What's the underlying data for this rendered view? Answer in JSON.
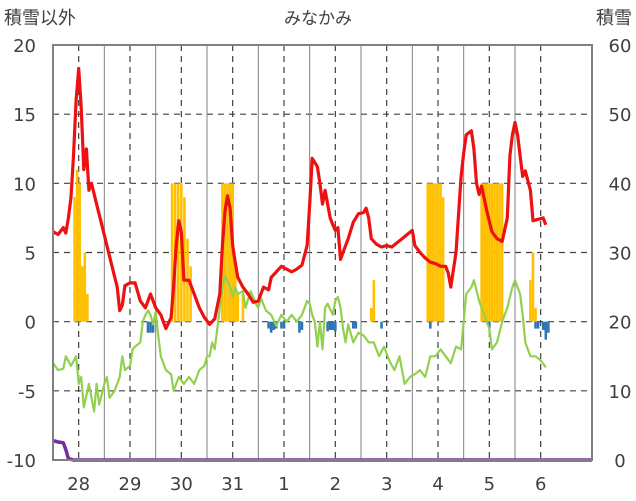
{
  "chart_data": {
    "type": "line",
    "title": "みなかみ",
    "left_axis": {
      "label": "積雪以外",
      "min": -10,
      "max": 20,
      "ticks": [
        "20",
        "15",
        "10",
        "5",
        "0",
        "-5",
        "-10"
      ],
      "tick_values": [
        20,
        15,
        10,
        5,
        0,
        -5,
        -10
      ]
    },
    "right_axis": {
      "label": "積雪",
      "min": 0,
      "max": 60,
      "ticks": [
        "60",
        "50",
        "40",
        "30",
        "20",
        "10",
        "0"
      ],
      "tick_values": [
        60,
        50,
        40,
        30,
        20,
        10,
        0
      ]
    },
    "x_categories": [
      "28",
      "29",
      "30",
      "31",
      "1",
      "2",
      "3",
      "4",
      "5",
      "6"
    ],
    "x_range": [
      0,
      10.5
    ],
    "grid": true,
    "colors": {
      "temp_line": "#ee1111",
      "green_line": "#92d050",
      "snow_line": "#7030a0",
      "yellow_bars": "#ffc000",
      "blue_bars": "#2e75b6",
      "grid": "#404040",
      "frame": "#808080"
    },
    "temperature_red": [
      [
        0.0,
        6.5
      ],
      [
        0.1,
        6.3
      ],
      [
        0.2,
        6.8
      ],
      [
        0.25,
        6.4
      ],
      [
        0.3,
        7.5
      ],
      [
        0.35,
        9.0
      ],
      [
        0.4,
        12.0
      ],
      [
        0.45,
        16.0
      ],
      [
        0.5,
        18.3
      ],
      [
        0.55,
        15.5
      ],
      [
        0.6,
        11.0
      ],
      [
        0.65,
        12.5
      ],
      [
        0.7,
        9.5
      ],
      [
        0.75,
        10.0
      ],
      [
        0.85,
        8.5
      ],
      [
        0.95,
        7.0
      ],
      [
        1.05,
        5.5
      ],
      [
        1.15,
        4.0
      ],
      [
        1.25,
        2.5
      ],
      [
        1.3,
        0.8
      ],
      [
        1.35,
        1.2
      ],
      [
        1.4,
        2.6
      ],
      [
        1.5,
        2.8
      ],
      [
        1.6,
        2.8
      ],
      [
        1.7,
        1.5
      ],
      [
        1.8,
        1.0
      ],
      [
        1.9,
        2.0
      ],
      [
        2.0,
        1.0
      ],
      [
        2.1,
        0.5
      ],
      [
        2.2,
        -0.5
      ],
      [
        2.3,
        0.3
      ],
      [
        2.35,
        2.5
      ],
      [
        2.4,
        5.5
      ],
      [
        2.45,
        7.3
      ],
      [
        2.5,
        6.5
      ],
      [
        2.55,
        3.0
      ],
      [
        2.65,
        3.0
      ],
      [
        2.75,
        2.0
      ],
      [
        2.85,
        1.0
      ],
      [
        2.95,
        0.3
      ],
      [
        3.05,
        -0.2
      ],
      [
        3.15,
        0.2
      ],
      [
        3.25,
        2.0
      ],
      [
        3.3,
        5.5
      ],
      [
        3.35,
        8.0
      ],
      [
        3.4,
        9.1
      ],
      [
        3.45,
        8.2
      ],
      [
        3.5,
        5.5
      ],
      [
        3.55,
        4.3
      ],
      [
        3.6,
        3.2
      ],
      [
        3.7,
        2.5
      ],
      [
        3.8,
        2.0
      ],
      [
        3.9,
        1.4
      ],
      [
        4.0,
        1.5
      ],
      [
        4.1,
        2.5
      ],
      [
        4.2,
        2.3
      ],
      [
        4.25,
        3.2
      ],
      [
        4.35,
        3.6
      ],
      [
        4.45,
        4.0
      ],
      [
        4.55,
        3.8
      ],
      [
        4.65,
        3.6
      ],
      [
        4.75,
        3.8
      ],
      [
        4.85,
        4.1
      ],
      [
        4.95,
        5.5
      ],
      [
        5.0,
        8.5
      ],
      [
        5.05,
        11.8
      ],
      [
        5.15,
        11.2
      ],
      [
        5.2,
        10.0
      ],
      [
        5.25,
        8.5
      ],
      [
        5.3,
        9.5
      ],
      [
        5.4,
        7.5
      ],
      [
        5.45,
        7.0
      ],
      [
        5.5,
        6.6
      ],
      [
        5.55,
        6.8
      ],
      [
        5.6,
        4.5
      ],
      [
        5.65,
        5.0
      ],
      [
        5.75,
        6.0
      ],
      [
        5.85,
        7.2
      ],
      [
        5.95,
        7.8
      ],
      [
        6.05,
        7.9
      ],
      [
        6.1,
        8.2
      ],
      [
        6.15,
        7.5
      ],
      [
        6.2,
        6.0
      ],
      [
        6.3,
        5.6
      ],
      [
        6.4,
        5.4
      ],
      [
        6.5,
        5.5
      ],
      [
        6.6,
        5.4
      ],
      [
        6.7,
        5.7
      ],
      [
        6.8,
        6.0
      ],
      [
        6.9,
        6.3
      ],
      [
        7.0,
        6.6
      ],
      [
        7.05,
        5.5
      ],
      [
        7.15,
        5.0
      ],
      [
        7.25,
        4.6
      ],
      [
        7.35,
        4.3
      ],
      [
        7.45,
        4.2
      ],
      [
        7.55,
        4.0
      ],
      [
        7.65,
        4.0
      ],
      [
        7.7,
        3.5
      ],
      [
        7.75,
        2.5
      ],
      [
        7.85,
        5.0
      ],
      [
        7.95,
        10.5
      ],
      [
        8.0,
        12.2
      ],
      [
        8.05,
        13.5
      ],
      [
        8.15,
        13.8
      ],
      [
        8.2,
        12.5
      ],
      [
        8.25,
        10.0
      ],
      [
        8.3,
        9.2
      ],
      [
        8.35,
        9.8
      ],
      [
        8.45,
        8.0
      ],
      [
        8.55,
        6.5
      ],
      [
        8.65,
        6.0
      ],
      [
        8.75,
        5.8
      ],
      [
        8.85,
        7.5
      ],
      [
        8.9,
        12.0
      ],
      [
        8.95,
        13.5
      ],
      [
        9.0,
        14.4
      ],
      [
        9.05,
        13.5
      ],
      [
        9.1,
        12.0
      ],
      [
        9.15,
        10.5
      ],
      [
        9.2,
        10.9
      ],
      [
        9.3,
        9.5
      ],
      [
        9.35,
        7.3
      ],
      [
        9.45,
        7.4
      ],
      [
        9.55,
        7.5
      ],
      [
        9.6,
        7.0
      ]
    ],
    "green_line": [
      [
        0.0,
        -3.0
      ],
      [
        0.1,
        -3.5
      ],
      [
        0.2,
        -3.4
      ],
      [
        0.25,
        -2.5
      ],
      [
        0.35,
        -3.2
      ],
      [
        0.45,
        -2.5
      ],
      [
        0.5,
        -4.5
      ],
      [
        0.55,
        -4.0
      ],
      [
        0.6,
        -6.2
      ],
      [
        0.7,
        -4.5
      ],
      [
        0.8,
        -6.5
      ],
      [
        0.85,
        -4.5
      ],
      [
        0.9,
        -6.0
      ],
      [
        1.0,
        -4.5
      ],
      [
        1.05,
        -4.0
      ],
      [
        1.1,
        -5.5
      ],
      [
        1.2,
        -5.0
      ],
      [
        1.3,
        -4.0
      ],
      [
        1.35,
        -2.5
      ],
      [
        1.4,
        -3.5
      ],
      [
        1.5,
        -3.2
      ],
      [
        1.55,
        -2.0
      ],
      [
        1.6,
        -1.8
      ],
      [
        1.7,
        -1.5
      ],
      [
        1.75,
        0.0
      ],
      [
        1.8,
        0.5
      ],
      [
        1.85,
        0.8
      ],
      [
        1.9,
        0.5
      ],
      [
        1.95,
        -0.2
      ],
      [
        2.0,
        0.7
      ],
      [
        2.05,
        -1.0
      ],
      [
        2.1,
        -2.5
      ],
      [
        2.2,
        -3.5
      ],
      [
        2.3,
        -3.8
      ],
      [
        2.35,
        -5.0
      ],
      [
        2.45,
        -4.0
      ],
      [
        2.55,
        -4.5
      ],
      [
        2.65,
        -4.0
      ],
      [
        2.75,
        -4.5
      ],
      [
        2.85,
        -3.5
      ],
      [
        2.95,
        -3.2
      ],
      [
        3.0,
        -2.5
      ],
      [
        3.05,
        -2.5
      ],
      [
        3.1,
        -1.5
      ],
      [
        3.15,
        -2.0
      ],
      [
        3.2,
        -0.5
      ],
      [
        3.25,
        1.0
      ],
      [
        3.3,
        2.5
      ],
      [
        3.35,
        3.3
      ],
      [
        3.45,
        2.5
      ],
      [
        3.5,
        1.8
      ],
      [
        3.55,
        2.5
      ],
      [
        3.6,
        2.0
      ],
      [
        3.7,
        2.2
      ],
      [
        3.75,
        1.0
      ],
      [
        3.85,
        2.2
      ],
      [
        3.95,
        1.3
      ],
      [
        4.0,
        1.0
      ],
      [
        4.05,
        1.7
      ],
      [
        4.15,
        0.8
      ],
      [
        4.25,
        0.5
      ],
      [
        4.35,
        -0.3
      ],
      [
        4.45,
        0.5
      ],
      [
        4.55,
        0.0
      ],
      [
        4.65,
        0.5
      ],
      [
        4.75,
        0.0
      ],
      [
        4.85,
        0.5
      ],
      [
        4.95,
        1.5
      ],
      [
        5.0,
        1.3
      ],
      [
        5.05,
        0.5
      ],
      [
        5.1,
        0.0
      ],
      [
        5.15,
        -1.8
      ],
      [
        5.2,
        0.0
      ],
      [
        5.25,
        -2.0
      ],
      [
        5.3,
        1.0
      ],
      [
        5.35,
        1.3
      ],
      [
        5.45,
        0.5
      ],
      [
        5.5,
        1.5
      ],
      [
        5.55,
        1.8
      ],
      [
        5.6,
        1.0
      ],
      [
        5.65,
        -0.5
      ],
      [
        5.7,
        -1.5
      ],
      [
        5.75,
        -0.2
      ],
      [
        5.85,
        -1.5
      ],
      [
        5.95,
        -0.8
      ],
      [
        6.05,
        -1.0
      ],
      [
        6.15,
        -1.5
      ],
      [
        6.25,
        -1.5
      ],
      [
        6.35,
        -2.5
      ],
      [
        6.45,
        -1.8
      ],
      [
        6.55,
        -2.8
      ],
      [
        6.65,
        -3.5
      ],
      [
        6.75,
        -2.5
      ],
      [
        6.85,
        -4.5
      ],
      [
        6.95,
        -4.0
      ],
      [
        7.05,
        -3.8
      ],
      [
        7.15,
        -3.5
      ],
      [
        7.25,
        -4.0
      ],
      [
        7.35,
        -2.5
      ],
      [
        7.45,
        -2.5
      ],
      [
        7.55,
        -2.0
      ],
      [
        7.65,
        -2.5
      ],
      [
        7.75,
        -3.0
      ],
      [
        7.85,
        -1.8
      ],
      [
        7.95,
        -2.0
      ],
      [
        8.0,
        0.0
      ],
      [
        8.05,
        2.0
      ],
      [
        8.15,
        2.5
      ],
      [
        8.2,
        3.0
      ],
      [
        8.3,
        1.5
      ],
      [
        8.4,
        0.5
      ],
      [
        8.5,
        -0.5
      ],
      [
        8.55,
        -2.0
      ],
      [
        8.65,
        -1.5
      ],
      [
        8.75,
        0.0
      ],
      [
        8.8,
        0.5
      ],
      [
        8.85,
        1.0
      ],
      [
        8.95,
        2.5
      ],
      [
        9.0,
        3.0
      ],
      [
        9.1,
        2.0
      ],
      [
        9.15,
        0.5
      ],
      [
        9.2,
        -1.5
      ],
      [
        9.3,
        -2.5
      ],
      [
        9.4,
        -2.5
      ],
      [
        9.5,
        -2.8
      ],
      [
        9.6,
        -3.3
      ]
    ],
    "snow_depth_purple": [
      [
        0.0,
        2.8
      ],
      [
        0.1,
        2.6
      ],
      [
        0.2,
        2.5
      ],
      [
        0.25,
        1.5
      ],
      [
        0.3,
        0.2
      ],
      [
        0.4,
        0.0
      ],
      [
        1.45,
        0.0
      ],
      [
        1.5,
        0.0
      ],
      [
        10.5,
        0.0
      ]
    ],
    "yellow_bars": [
      [
        0.42,
        9
      ],
      [
        0.47,
        11
      ],
      [
        0.52,
        10
      ],
      [
        0.57,
        4
      ],
      [
        0.62,
        5
      ],
      [
        0.67,
        2
      ],
      [
        2.32,
        10
      ],
      [
        2.38,
        10
      ],
      [
        2.44,
        10
      ],
      [
        2.5,
        10
      ],
      [
        2.56,
        9
      ],
      [
        2.62,
        6
      ],
      [
        2.68,
        4
      ],
      [
        3.3,
        10
      ],
      [
        3.35,
        10
      ],
      [
        3.4,
        10
      ],
      [
        3.45,
        10
      ],
      [
        3.5,
        10
      ],
      [
        3.55,
        4
      ],
      [
        3.6,
        2
      ],
      [
        3.7,
        2
      ],
      [
        6.2,
        1
      ],
      [
        6.25,
        3
      ],
      [
        7.3,
        10
      ],
      [
        7.35,
        10
      ],
      [
        7.4,
        10
      ],
      [
        7.45,
        10
      ],
      [
        7.5,
        10
      ],
      [
        7.55,
        10
      ],
      [
        7.6,
        9
      ],
      [
        8.35,
        10
      ],
      [
        8.4,
        10
      ],
      [
        8.45,
        10
      ],
      [
        8.5,
        10
      ],
      [
        8.55,
        10
      ],
      [
        8.6,
        10
      ],
      [
        8.65,
        10
      ],
      [
        8.7,
        10
      ],
      [
        8.75,
        10
      ],
      [
        9.3,
        3
      ],
      [
        9.35,
        5
      ],
      [
        9.4,
        1
      ]
    ],
    "blue_bars": [
      [
        1.85,
        -0.8
      ],
      [
        1.9,
        -0.8
      ],
      [
        1.95,
        -0.8
      ],
      [
        4.2,
        -0.5
      ],
      [
        4.25,
        -0.8
      ],
      [
        4.3,
        -0.6
      ],
      [
        4.35,
        -0.5
      ],
      [
        4.45,
        -0.5
      ],
      [
        4.5,
        -0.5
      ],
      [
        4.8,
        -0.8
      ],
      [
        4.85,
        -0.6
      ],
      [
        5.35,
        -0.7
      ],
      [
        5.4,
        -0.6
      ],
      [
        5.45,
        -0.6
      ],
      [
        5.5,
        -0.7
      ],
      [
        5.85,
        -0.5
      ],
      [
        5.9,
        -0.5
      ],
      [
        6.4,
        -0.5
      ],
      [
        7.35,
        -0.5
      ],
      [
        8.5,
        -0.5
      ],
      [
        9.4,
        -0.5
      ],
      [
        9.45,
        -0.5
      ],
      [
        9.55,
        -0.6
      ],
      [
        9.6,
        -1.3
      ],
      [
        9.65,
        -0.8
      ]
    ]
  }
}
